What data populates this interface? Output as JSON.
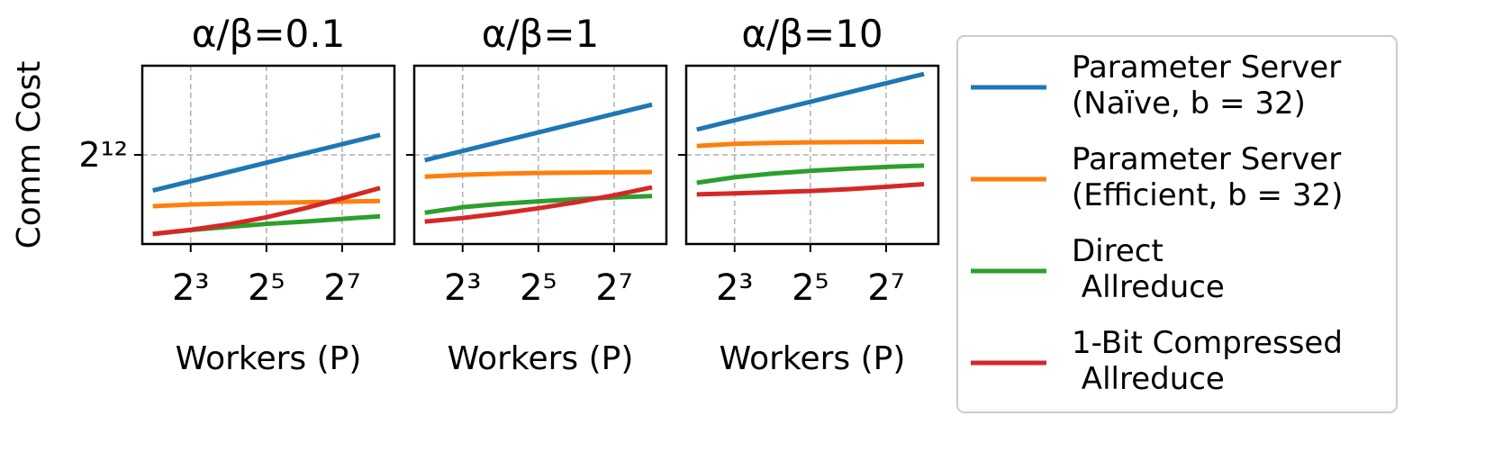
{
  "chart_data": [
    {
      "type": "line",
      "title": "α/β=0.1",
      "xlabel": "Workers (P)",
      "ylabel": "Comm Cost",
      "x": [
        4,
        8,
        16,
        32,
        64,
        128,
        256
      ],
      "xscale": "log2",
      "yscale": "log2",
      "xlim": [
        3.3,
        333
      ],
      "ylim": [
        724,
        23170
      ],
      "xticks": [
        {
          "value": 8,
          "label": "2³"
        },
        {
          "value": 32,
          "label": "2⁵"
        },
        {
          "value": 128,
          "label": "2⁷"
        }
      ],
      "yticks": [
        {
          "value": 4096,
          "label": "2¹²"
        }
      ],
      "grid": true,
      "legend": "outside right",
      "series": [
        {
          "name": "Parameter Server\n(Naïve, b = 32)",
          "color": "#1f77b4",
          "values": [
            2048,
            2452,
            2936,
            3516,
            4211,
            5042,
            6038
          ]
        },
        {
          "name": "Parameter Server\n(Efficient, b = 32)",
          "color": "#ff7f0e",
          "values": [
            1510,
            1560,
            1590,
            1610,
            1630,
            1650,
            1670
          ]
        },
        {
          "name": "Direct\n Allreduce",
          "color": "#2ca02c",
          "values": [
            879,
            950,
            1010,
            1070,
            1120,
            1180,
            1240
          ]
        },
        {
          "name": "1-Bit Compressed\n Allreduce",
          "color": "#d62728",
          "values": [
            879,
            955,
            1060,
            1218,
            1448,
            1758,
            2150
          ]
        }
      ]
    },
    {
      "type": "line",
      "title": "α/β=1",
      "xlabel": "Workers (P)",
      "sharey": true,
      "x": [
        4,
        8,
        16,
        32,
        64,
        128,
        256
      ],
      "xscale": "log2",
      "xlim": [
        3.3,
        333
      ],
      "xticks": [
        {
          "value": 8,
          "label": "2³"
        },
        {
          "value": 32,
          "label": "2⁵"
        },
        {
          "value": 128,
          "label": "2⁷"
        }
      ],
      "grid": true,
      "series": [
        {
          "color": "#1f77b4",
          "values": [
            3690,
            4420,
            5300,
            6340,
            7590,
            9090,
            10880
          ]
        },
        {
          "color": "#ff7f0e",
          "values": [
            2680,
            2780,
            2840,
            2880,
            2900,
            2920,
            2930
          ]
        },
        {
          "color": "#2ca02c",
          "values": [
            1330,
            1480,
            1580,
            1660,
            1730,
            1790,
            1840
          ]
        },
        {
          "color": "#d62728",
          "values": [
            1120,
            1200,
            1310,
            1450,
            1630,
            1870,
            2180
          ]
        }
      ]
    },
    {
      "type": "line",
      "title": "α/β=10",
      "xlabel": "Workers (P)",
      "sharey": true,
      "x": [
        4,
        8,
        16,
        32,
        64,
        128,
        256
      ],
      "xscale": "log2",
      "xlim": [
        3.3,
        333
      ],
      "xticks": [
        {
          "value": 8,
          "label": "2³"
        },
        {
          "value": 32,
          "label": "2⁵"
        },
        {
          "value": 128,
          "label": "2⁷"
        }
      ],
      "grid": true,
      "series": [
        {
          "color": "#1f77b4",
          "values": [
            6700,
            8020,
            9600,
            11500,
            13770,
            16490,
            19740
          ]
        },
        {
          "color": "#ff7f0e",
          "values": [
            4870,
            5070,
            5170,
            5220,
            5250,
            5270,
            5280
          ]
        },
        {
          "color": "#2ca02c",
          "values": [
            2380,
            2650,
            2850,
            3000,
            3130,
            3240,
            3330
          ]
        },
        {
          "color": "#d62728",
          "values": [
            1900,
            1940,
            1980,
            2030,
            2100,
            2200,
            2320
          ]
        }
      ]
    }
  ]
}
